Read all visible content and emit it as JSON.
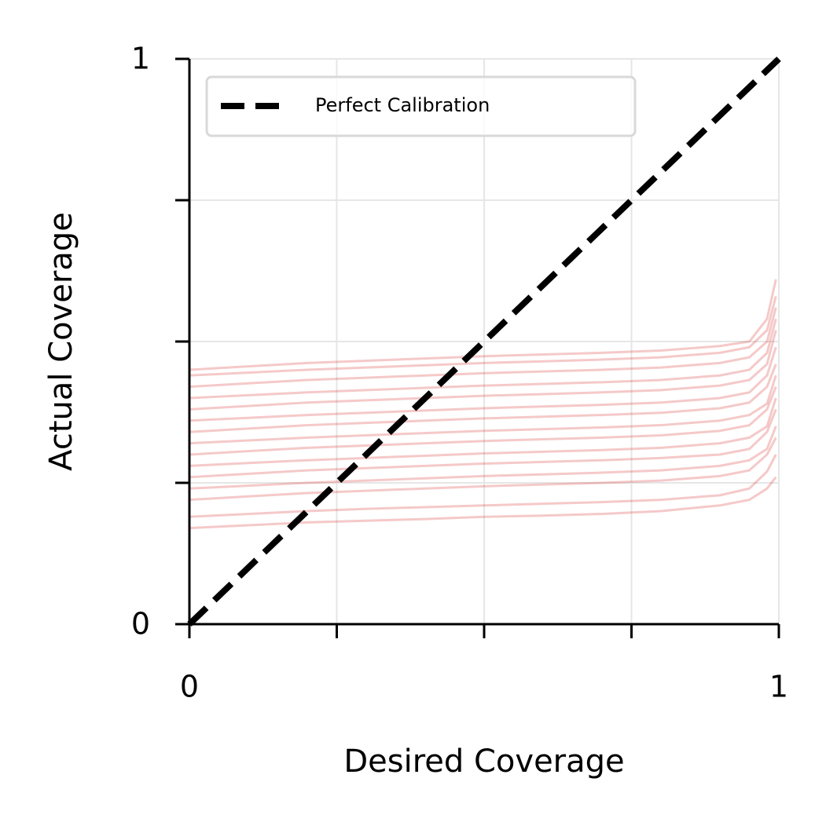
{
  "chart_data": {
    "type": "line",
    "xlabel": "Desired Coverage",
    "ylabel": "Actual Coverage",
    "xlim": [
      0,
      1
    ],
    "ylim": [
      0,
      1
    ],
    "xticks": [
      0,
      {
        "value": 0.25,
        "label": null
      },
      {
        "value": 0.5,
        "label": null
      },
      {
        "value": 0.75,
        "label": null
      },
      1
    ],
    "yticks": [
      0,
      {
        "value": 0.25,
        "label": null
      },
      {
        "value": 0.5,
        "label": null
      },
      {
        "value": 0.75,
        "label": null
      },
      1
    ],
    "grid": true,
    "legend": "upper left",
    "alpha": 0.25,
    "x": [
      0,
      0.1,
      0.2,
      0.3,
      0.4,
      0.5,
      0.6,
      0.7,
      0.8,
      0.9,
      0.95,
      0.98,
      0.995
    ],
    "series": [
      {
        "color": "#d62728",
        "values": [
          0.17,
          0.175,
          0.18,
          0.183,
          0.186,
          0.19,
          0.192,
          0.195,
          0.2,
          0.21,
          0.22,
          0.24,
          0.26
        ]
      },
      {
        "color": "#d62728",
        "values": [
          0.19,
          0.195,
          0.2,
          0.204,
          0.207,
          0.21,
          0.213,
          0.216,
          0.22,
          0.228,
          0.24,
          0.27,
          0.3
        ]
      },
      {
        "color": "#d62728",
        "values": [
          0.22,
          0.226,
          0.232,
          0.236,
          0.24,
          0.244,
          0.247,
          0.25,
          0.254,
          0.262,
          0.272,
          0.3,
          0.33
        ]
      },
      {
        "color": "#d62728",
        "values": [
          0.24,
          0.245,
          0.25,
          0.254,
          0.258,
          0.262,
          0.265,
          0.268,
          0.272,
          0.28,
          0.29,
          0.31,
          0.35
        ]
      },
      {
        "color": "#d62728",
        "values": [
          0.26,
          0.266,
          0.272,
          0.276,
          0.28,
          0.284,
          0.287,
          0.29,
          0.294,
          0.3,
          0.31,
          0.34,
          0.38
        ]
      },
      {
        "color": "#d62728",
        "values": [
          0.28,
          0.285,
          0.29,
          0.294,
          0.298,
          0.302,
          0.305,
          0.308,
          0.312,
          0.32,
          0.33,
          0.35,
          0.4
        ]
      },
      {
        "color": "#d62728",
        "values": [
          0.3,
          0.306,
          0.312,
          0.316,
          0.32,
          0.324,
          0.327,
          0.33,
          0.334,
          0.342,
          0.352,
          0.38,
          0.42
        ]
      },
      {
        "color": "#d62728",
        "values": [
          0.32,
          0.325,
          0.33,
          0.334,
          0.338,
          0.342,
          0.345,
          0.348,
          0.352,
          0.36,
          0.37,
          0.39,
          0.44
        ]
      },
      {
        "color": "#d62728",
        "values": [
          0.34,
          0.346,
          0.352,
          0.356,
          0.36,
          0.364,
          0.367,
          0.37,
          0.374,
          0.382,
          0.392,
          0.42,
          0.46
        ]
      },
      {
        "color": "#d62728",
        "values": [
          0.36,
          0.365,
          0.37,
          0.374,
          0.378,
          0.382,
          0.385,
          0.388,
          0.392,
          0.4,
          0.41,
          0.44,
          0.49
        ]
      },
      {
        "color": "#d62728",
        "values": [
          0.38,
          0.386,
          0.392,
          0.396,
          0.4,
          0.404,
          0.407,
          0.41,
          0.414,
          0.422,
          0.432,
          0.46,
          0.52
        ]
      },
      {
        "color": "#d62728",
        "values": [
          0.4,
          0.405,
          0.41,
          0.414,
          0.418,
          0.422,
          0.425,
          0.428,
          0.432,
          0.44,
          0.45,
          0.48,
          0.54
        ]
      },
      {
        "color": "#d62728",
        "values": [
          0.42,
          0.426,
          0.432,
          0.436,
          0.44,
          0.444,
          0.447,
          0.45,
          0.454,
          0.462,
          0.472,
          0.5,
          0.56
        ]
      },
      {
        "color": "#d62728",
        "values": [
          0.44,
          0.445,
          0.45,
          0.454,
          0.458,
          0.462,
          0.465,
          0.468,
          0.472,
          0.48,
          0.49,
          0.52,
          0.58
        ]
      },
      {
        "color": "#d62728",
        "values": [
          0.45,
          0.456,
          0.462,
          0.466,
          0.47,
          0.474,
          0.477,
          0.48,
          0.484,
          0.492,
          0.5,
          0.54,
          0.61
        ]
      },
      {
        "name": "Perfect Calibration",
        "color": "#000000",
        "dashed": true,
        "x": [
          0,
          1
        ],
        "values": [
          0,
          1
        ]
      }
    ]
  }
}
